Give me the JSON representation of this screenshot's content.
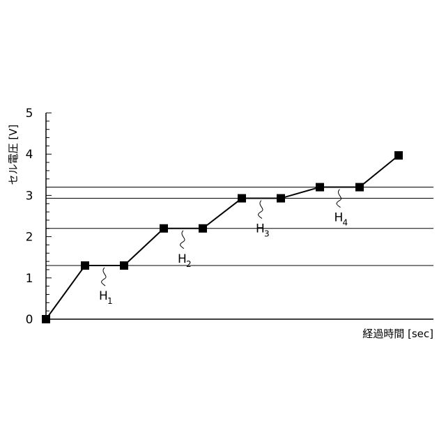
{
  "chart_data": {
    "type": "line",
    "xlabel": "経過時間 [sec]",
    "ylabel": "セル電圧 [V]",
    "ylim": [
      0,
      5
    ],
    "yticks": [
      "0",
      "1",
      "2",
      "3",
      "4",
      "5"
    ],
    "grid": false,
    "series": [
      {
        "x": [
          0,
          1,
          2,
          3,
          4,
          5,
          6,
          7,
          8,
          9
        ],
        "y": [
          0,
          1.3,
          1.3,
          2.2,
          2.2,
          2.93,
          2.93,
          3.2,
          3.2,
          3.97
        ]
      }
    ],
    "reference_lines": [
      1.3,
      2.2,
      2.93,
      3.2
    ],
    "annotations": [
      {
        "label": "H",
        "sub": "1",
        "between_points": [
          1,
          2
        ]
      },
      {
        "label": "H",
        "sub": "2",
        "between_points": [
          3,
          4
        ]
      },
      {
        "label": "H",
        "sub": "3",
        "between_points": [
          5,
          6
        ]
      },
      {
        "label": "H",
        "sub": "4",
        "between_points": [
          7,
          8
        ]
      }
    ],
    "colors": {
      "line": "#000000",
      "marker": "#000000",
      "axis": "#000000"
    }
  }
}
